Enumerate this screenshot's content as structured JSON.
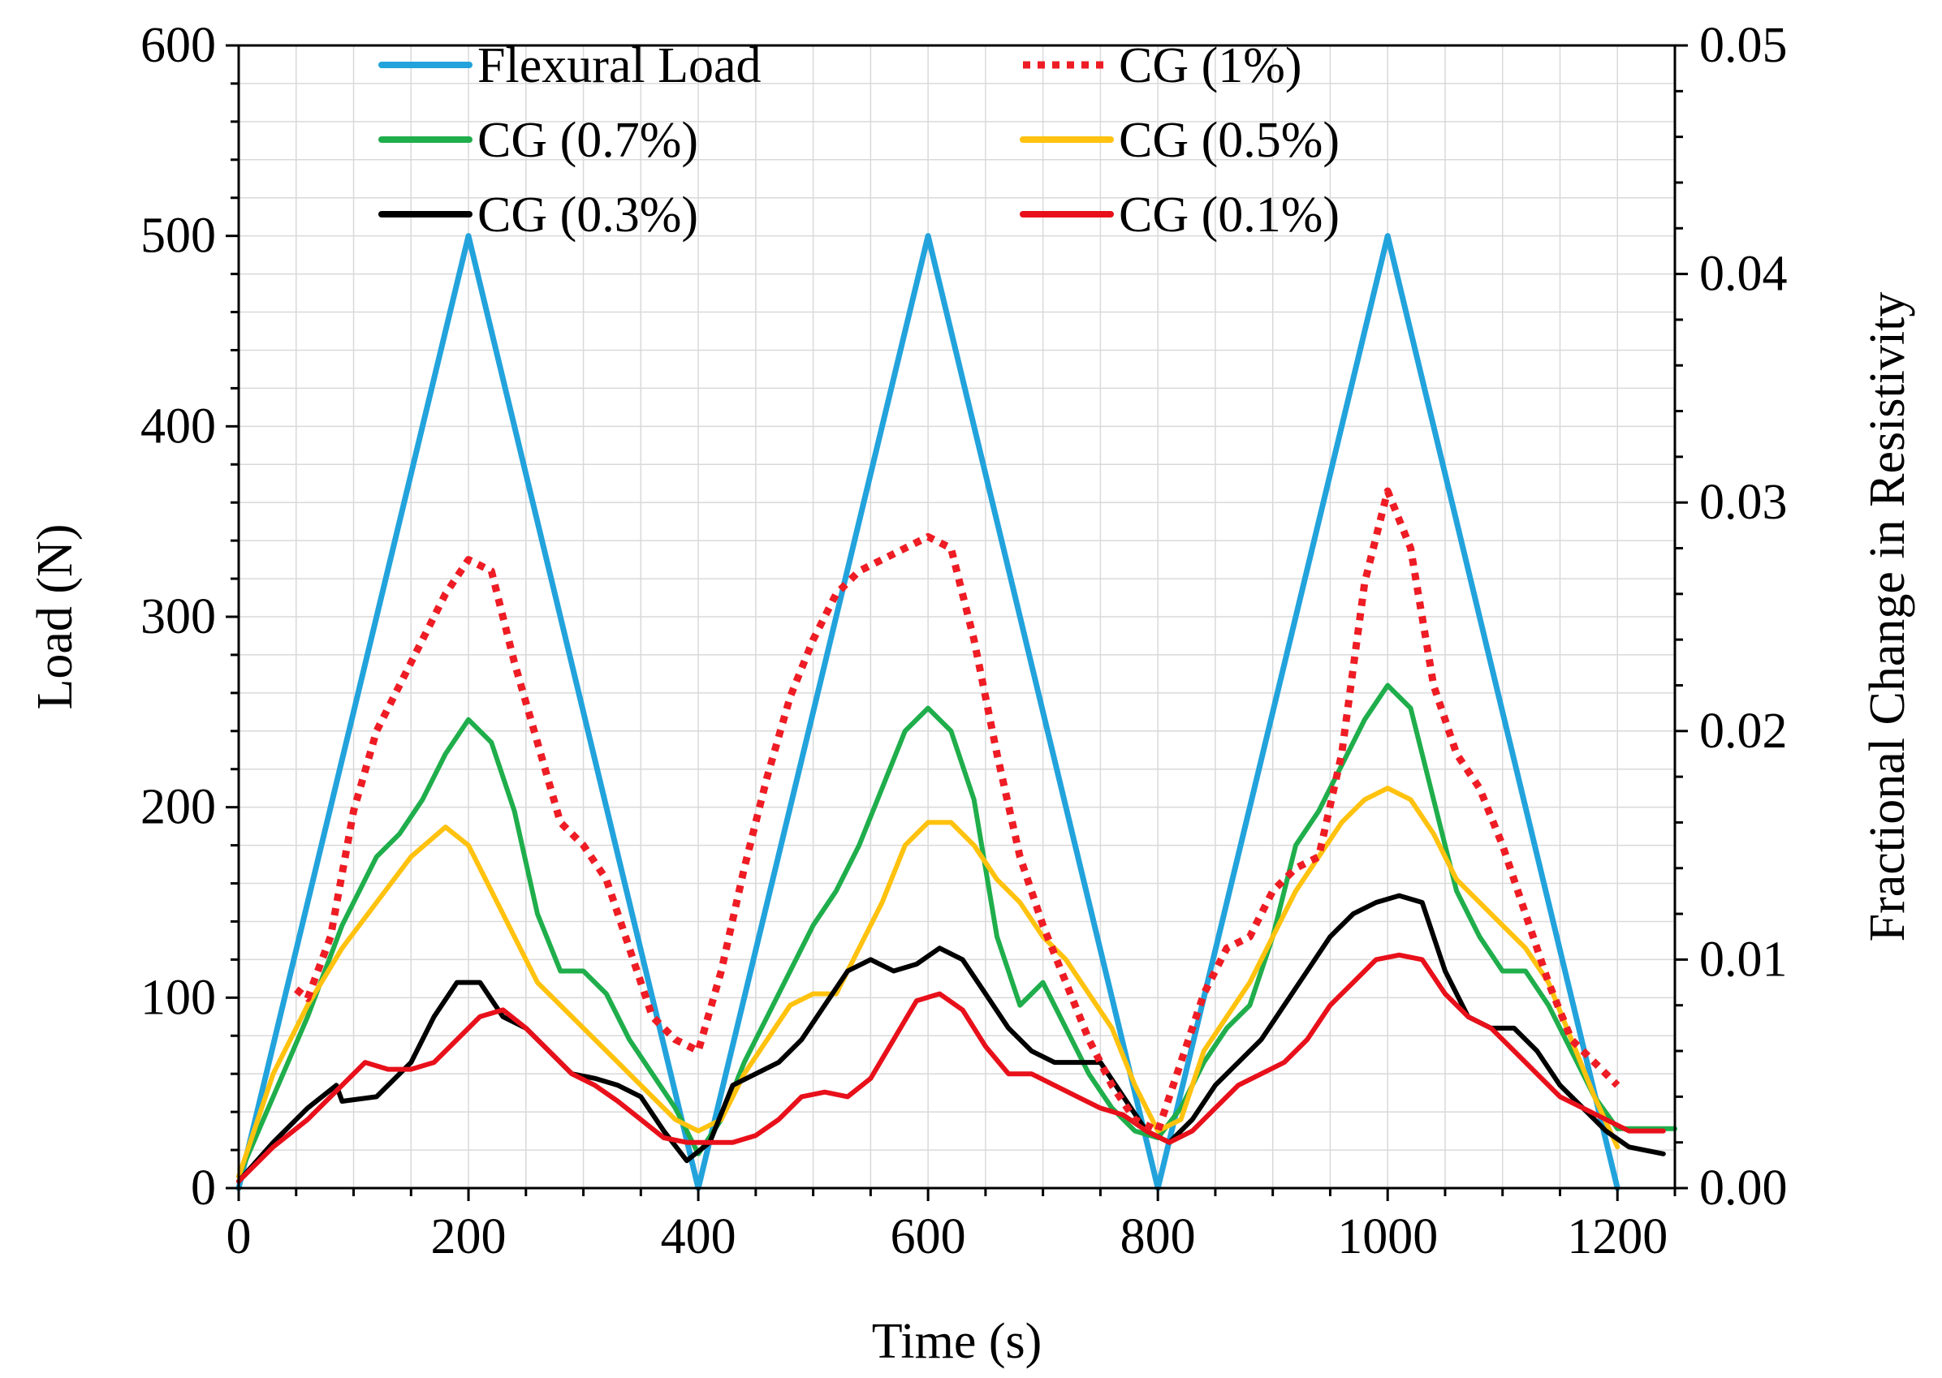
{
  "chart_data": {
    "type": "line",
    "xlabel": "Time (s)",
    "ylabel_left": "Load (N)",
    "ylabel_right": "Fractional Change in Resistivity",
    "xlim": [
      0,
      1250
    ],
    "ylim_left": [
      0,
      600
    ],
    "ylim_right": [
      0,
      0.05
    ],
    "x_ticks": [
      0,
      200,
      400,
      600,
      800,
      1000,
      1200
    ],
    "y_left_ticks": [
      0,
      100,
      200,
      300,
      400,
      500,
      600
    ],
    "y_right_ticks": [
      "0.00",
      "0.01",
      "0.02",
      "0.03",
      "0.04",
      "0.05"
    ],
    "grid": true,
    "legend_position": "top",
    "colors": {
      "flexural": "#22a3dc",
      "cg1": "#ee1c24",
      "cg07": "#1fae4b",
      "cg05": "#ffc20e",
      "cg03": "#000000",
      "cg01": "#e8101a"
    },
    "series": [
      {
        "name": "Flexural Load",
        "axis": "left",
        "color": "#22a3dc",
        "style": "solid",
        "x": [
          0,
          200,
          400,
          600,
          800,
          1000,
          1200
        ],
        "y": [
          0,
          500,
          0,
          500,
          0,
          500,
          0
        ]
      },
      {
        "name": "CG (1%)",
        "axis": "right",
        "color": "#ee1c24",
        "style": "dotted",
        "x": [
          50,
          60,
          80,
          100,
          120,
          140,
          160,
          180,
          200,
          220,
          240,
          260,
          280,
          300,
          320,
          340,
          360,
          380,
          400,
          420,
          440,
          460,
          480,
          500,
          520,
          540,
          560,
          580,
          600,
          620,
          640,
          660,
          680,
          700,
          720,
          740,
          760,
          780,
          800,
          820,
          840,
          860,
          880,
          900,
          920,
          940,
          960,
          980,
          1000,
          1020,
          1040,
          1060,
          1080,
          1100,
          1120,
          1140,
          1160,
          1180,
          1200
        ],
        "y": [
          0.0087,
          0.0083,
          0.011,
          0.0165,
          0.02,
          0.022,
          0.024,
          0.026,
          0.0275,
          0.027,
          0.023,
          0.0195,
          0.016,
          0.015,
          0.0135,
          0.0105,
          0.0075,
          0.0065,
          0.006,
          0.0095,
          0.014,
          0.018,
          0.0215,
          0.024,
          0.026,
          0.027,
          0.0275,
          0.028,
          0.0285,
          0.028,
          0.024,
          0.019,
          0.0145,
          0.0115,
          0.009,
          0.0065,
          0.0045,
          0.003,
          0.0025,
          0.0055,
          0.0085,
          0.0105,
          0.011,
          0.013,
          0.014,
          0.0145,
          0.019,
          0.0265,
          0.0305,
          0.028,
          0.022,
          0.019,
          0.0175,
          0.015,
          0.012,
          0.009,
          0.0065,
          0.0055,
          0.0045
        ]
      },
      {
        "name": "CG (0.7%)",
        "axis": "right",
        "color": "#1fae4b",
        "style": "solid",
        "x": [
          0,
          30,
          60,
          90,
          120,
          140,
          160,
          180,
          200,
          220,
          240,
          260,
          280,
          300,
          320,
          340,
          360,
          380,
          400,
          420,
          440,
          460,
          480,
          500,
          520,
          540,
          560,
          580,
          600,
          620,
          640,
          660,
          680,
          700,
          720,
          740,
          760,
          780,
          800,
          820,
          840,
          860,
          880,
          900,
          920,
          940,
          960,
          980,
          1000,
          1020,
          1040,
          1060,
          1080,
          1100,
          1120,
          1140,
          1160,
          1180,
          1200,
          1250
        ],
        "y": [
          0.0005,
          0.004,
          0.0075,
          0.0115,
          0.0145,
          0.0155,
          0.017,
          0.019,
          0.0205,
          0.0195,
          0.0165,
          0.012,
          0.0095,
          0.0095,
          0.0085,
          0.0065,
          0.005,
          0.0035,
          0.0015,
          0.003,
          0.0055,
          0.0075,
          0.0095,
          0.0115,
          0.013,
          0.015,
          0.0175,
          0.02,
          0.021,
          0.02,
          0.017,
          0.011,
          0.008,
          0.009,
          0.007,
          0.005,
          0.0035,
          0.0025,
          0.0022,
          0.0035,
          0.0055,
          0.007,
          0.008,
          0.011,
          0.015,
          0.0165,
          0.0185,
          0.0205,
          0.022,
          0.021,
          0.017,
          0.013,
          0.011,
          0.0095,
          0.0095,
          0.008,
          0.006,
          0.004,
          0.0026,
          0.0026
        ]
      },
      {
        "name": "CG (0.5%)",
        "axis": "right",
        "color": "#ffc20e",
        "style": "solid",
        "x": [
          0,
          30,
          60,
          90,
          120,
          150,
          180,
          200,
          220,
          240,
          260,
          280,
          300,
          320,
          340,
          360,
          380,
          400,
          420,
          440,
          460,
          480,
          500,
          520,
          540,
          560,
          580,
          600,
          620,
          640,
          660,
          680,
          700,
          720,
          740,
          760,
          780,
          800,
          820,
          840,
          860,
          880,
          900,
          920,
          940,
          960,
          980,
          1000,
          1020,
          1040,
          1060,
          1080,
          1100,
          1120,
          1140,
          1160,
          1180,
          1200
        ],
        "y": [
          0.0005,
          0.005,
          0.008,
          0.0105,
          0.0125,
          0.0145,
          0.0158,
          0.015,
          0.013,
          0.011,
          0.009,
          0.008,
          0.007,
          0.006,
          0.005,
          0.004,
          0.003,
          0.0025,
          0.003,
          0.005,
          0.0065,
          0.008,
          0.0085,
          0.0085,
          0.0105,
          0.0125,
          0.015,
          0.016,
          0.016,
          0.015,
          0.0135,
          0.0125,
          0.011,
          0.01,
          0.0085,
          0.007,
          0.0045,
          0.0025,
          0.003,
          0.006,
          0.0075,
          0.009,
          0.011,
          0.013,
          0.0145,
          0.016,
          0.017,
          0.0175,
          0.017,
          0.0155,
          0.0135,
          0.0125,
          0.0115,
          0.0105,
          0.009,
          0.0065,
          0.004,
          0.0018
        ]
      },
      {
        "name": "CG (0.3%)",
        "axis": "right",
        "color": "#000000",
        "style": "solid",
        "x": [
          0,
          30,
          60,
          85,
          90,
          120,
          150,
          170,
          190,
          210,
          230,
          250,
          270,
          290,
          310,
          330,
          350,
          370,
          390,
          410,
          430,
          450,
          470,
          490,
          510,
          530,
          550,
          570,
          590,
          610,
          630,
          650,
          670,
          690,
          710,
          730,
          750,
          770,
          790,
          810,
          830,
          850,
          870,
          890,
          910,
          930,
          950,
          970,
          990,
          1010,
          1030,
          1050,
          1070,
          1090,
          1110,
          1130,
          1150,
          1170,
          1190,
          1210,
          1240
        ],
        "y": [
          0.0003,
          0.002,
          0.0035,
          0.0045,
          0.0038,
          0.004,
          0.0055,
          0.0075,
          0.009,
          0.009,
          0.0075,
          0.007,
          0.006,
          0.005,
          0.0048,
          0.0045,
          0.004,
          0.0025,
          0.0012,
          0.002,
          0.0045,
          0.005,
          0.0055,
          0.0065,
          0.008,
          0.0095,
          0.01,
          0.0095,
          0.0098,
          0.0105,
          0.01,
          0.0085,
          0.007,
          0.006,
          0.0055,
          0.0055,
          0.0055,
          0.004,
          0.0025,
          0.002,
          0.003,
          0.0045,
          0.0055,
          0.0065,
          0.008,
          0.0095,
          0.011,
          0.012,
          0.0125,
          0.0128,
          0.0125,
          0.0095,
          0.0075,
          0.007,
          0.007,
          0.006,
          0.0045,
          0.0035,
          0.0025,
          0.0018,
          0.0015
        ]
      },
      {
        "name": "CG (0.1%)",
        "axis": "right",
        "color": "#e8101a",
        "style": "solid",
        "x": [
          0,
          30,
          60,
          90,
          110,
          130,
          150,
          170,
          190,
          210,
          230,
          250,
          270,
          290,
          310,
          330,
          350,
          370,
          390,
          410,
          430,
          450,
          470,
          490,
          510,
          530,
          550,
          570,
          590,
          610,
          630,
          650,
          670,
          690,
          710,
          730,
          750,
          770,
          790,
          810,
          830,
          850,
          870,
          890,
          910,
          930,
          950,
          970,
          990,
          1010,
          1030,
          1050,
          1070,
          1090,
          1110,
          1130,
          1150,
          1170,
          1190,
          1210,
          1240
        ],
        "y": [
          0.0003,
          0.0018,
          0.003,
          0.0045,
          0.0055,
          0.0052,
          0.0052,
          0.0055,
          0.0065,
          0.0075,
          0.0078,
          0.007,
          0.006,
          0.005,
          0.0045,
          0.0038,
          0.003,
          0.0022,
          0.002,
          0.002,
          0.002,
          0.0023,
          0.003,
          0.004,
          0.0042,
          0.004,
          0.0048,
          0.0065,
          0.0082,
          0.0085,
          0.0078,
          0.0062,
          0.005,
          0.005,
          0.0045,
          0.004,
          0.0035,
          0.0032,
          0.0025,
          0.002,
          0.0025,
          0.0035,
          0.0045,
          0.005,
          0.0055,
          0.0065,
          0.008,
          0.009,
          0.01,
          0.0102,
          0.01,
          0.0085,
          0.0075,
          0.007,
          0.006,
          0.005,
          0.004,
          0.0035,
          0.003,
          0.0025,
          0.0025
        ]
      }
    ]
  }
}
